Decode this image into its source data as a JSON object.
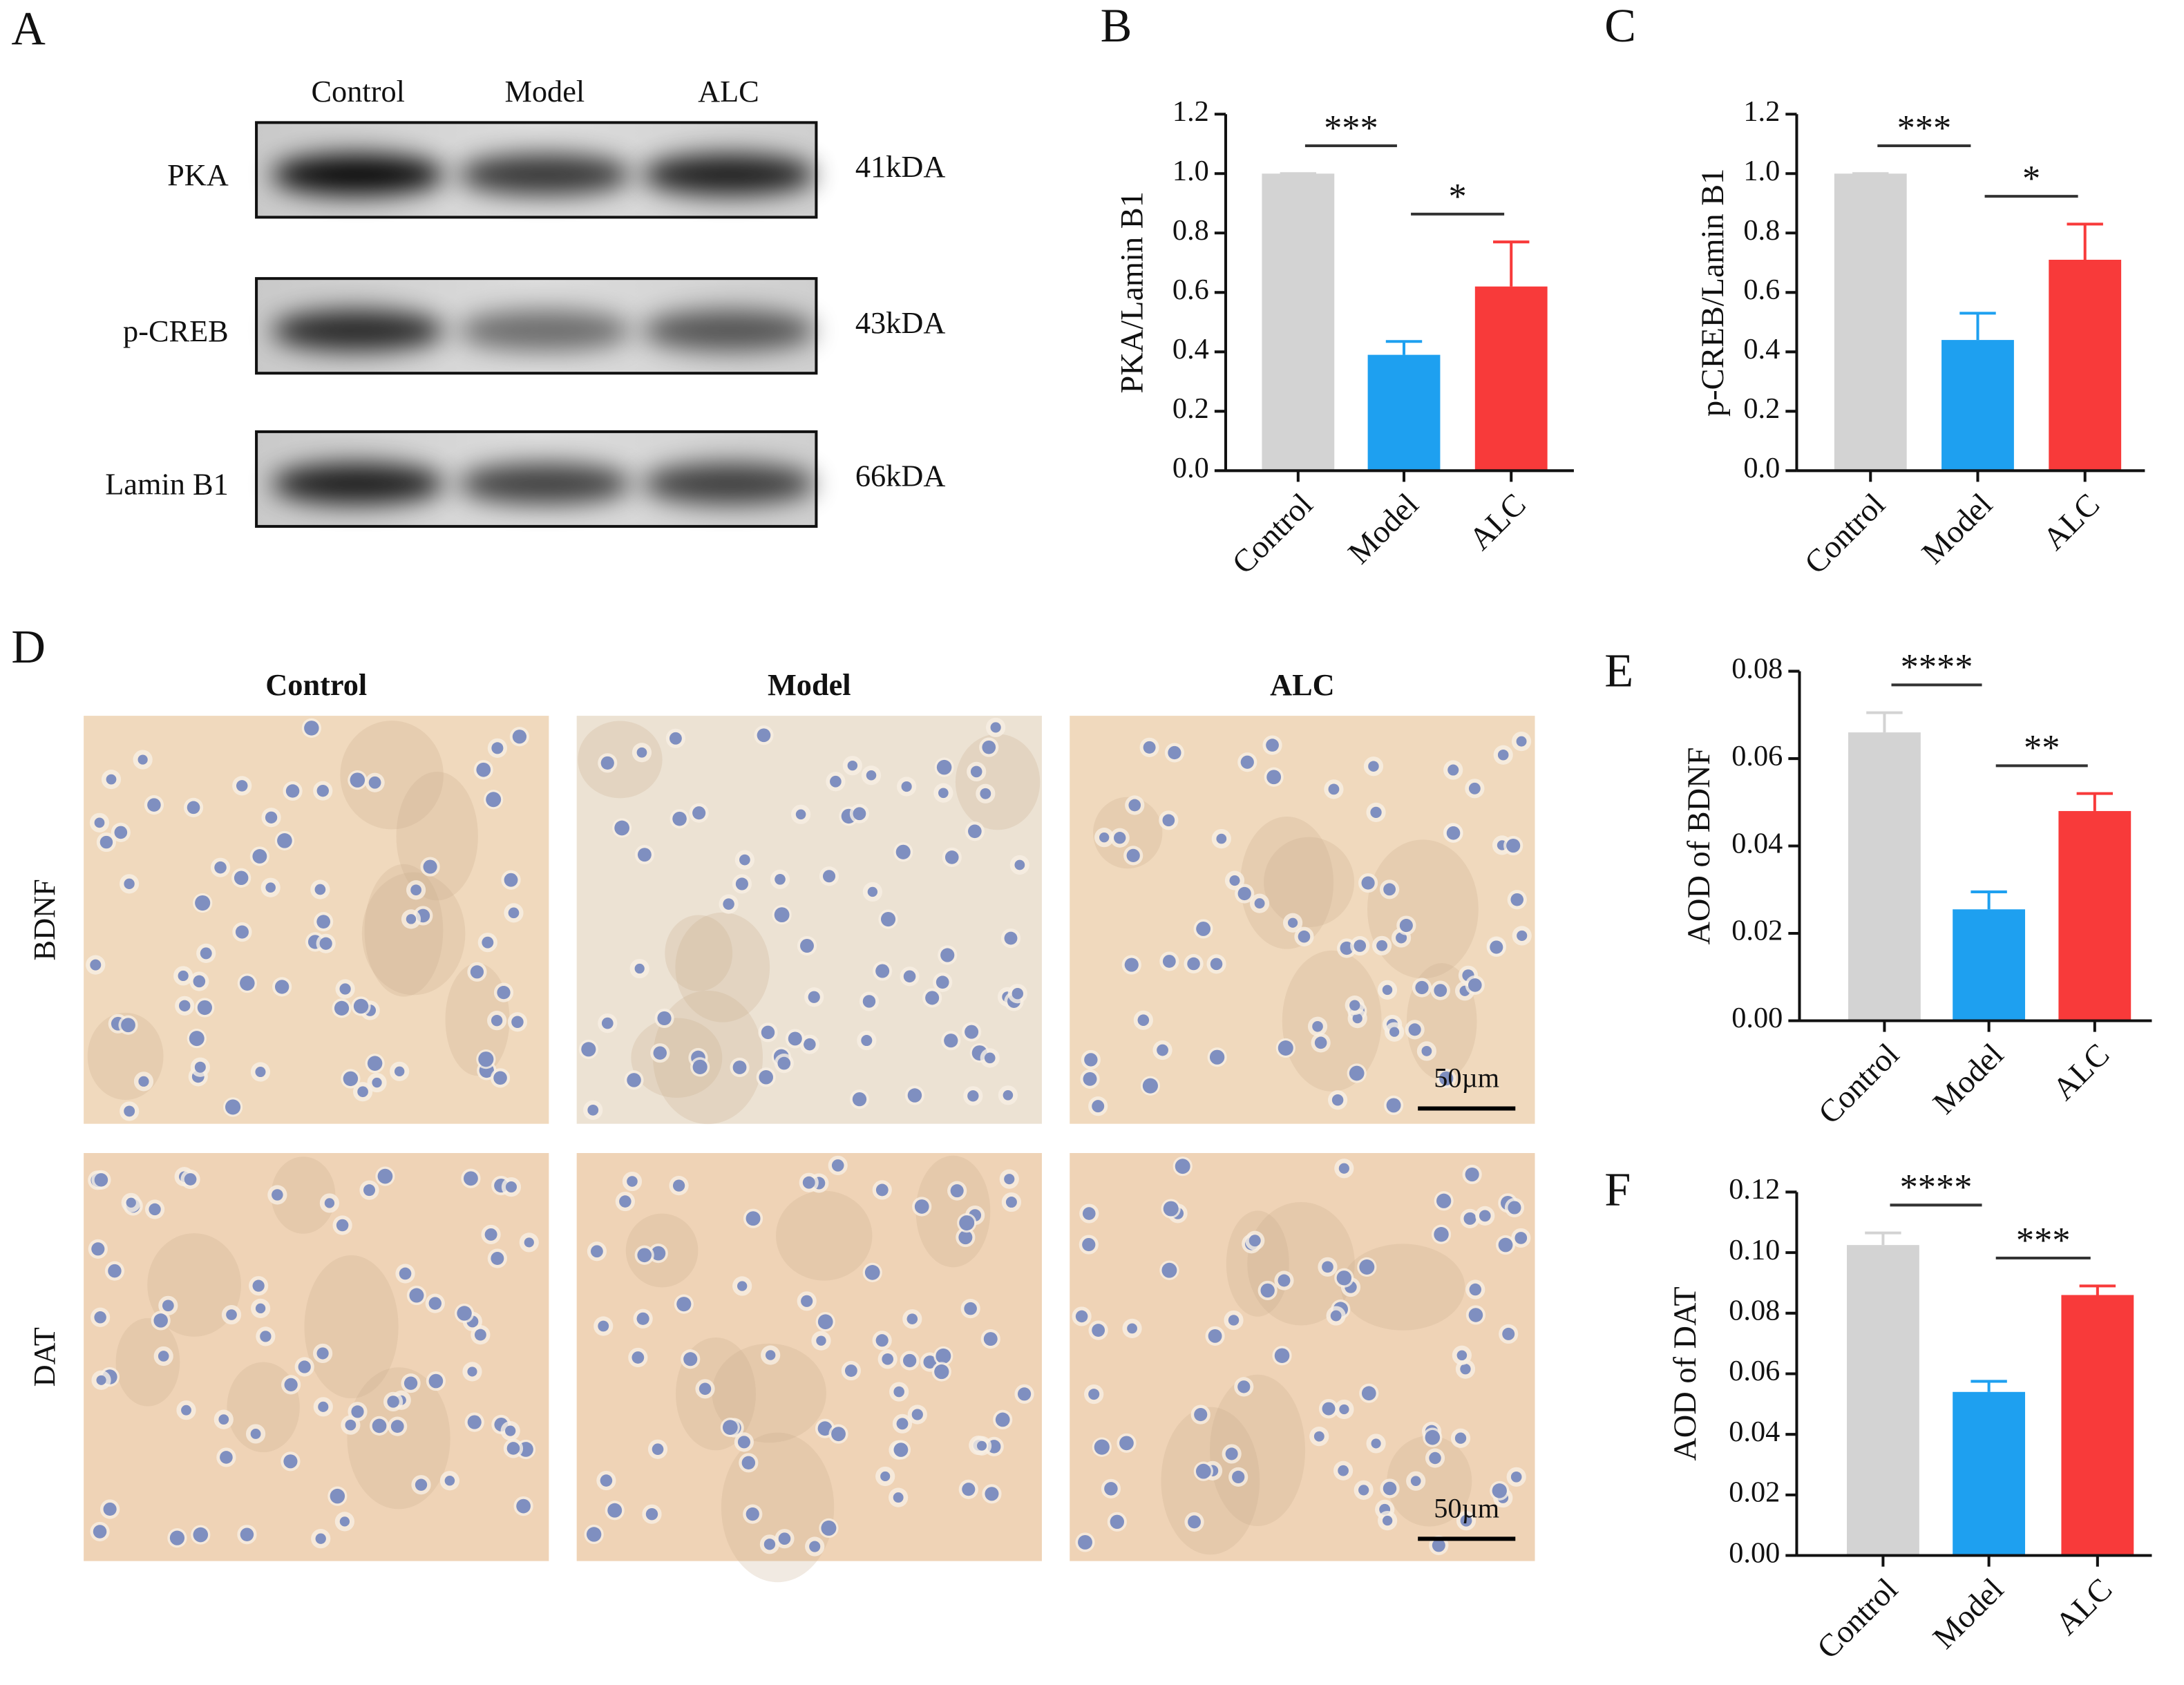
{
  "chart_data": [
    {
      "type": "bar",
      "label": "B",
      "ylabel": "PKA/Lamin B1",
      "categories": [
        "Control",
        "Model",
        "ALC"
      ],
      "values": [
        1.0,
        0.39,
        0.62
      ],
      "errors": [
        0,
        0.045,
        0.15
      ],
      "colors": [
        "#d3d3d3",
        "#1ea0f0",
        "#f83a3a"
      ],
      "ylim": [
        0,
        1.2
      ],
      "yticks": [
        {
          "value": 0,
          "label": "0.0"
        },
        0.2,
        0.4,
        0.6,
        0.8,
        {
          "value": 1,
          "label": "1.0"
        },
        1.2
      ],
      "annotations": [
        "***",
        "*"
      ]
    },
    {
      "type": "bar",
      "label": "C",
      "ylabel": "p-CREB/Lamin B1",
      "categories": [
        "Control",
        "Model",
        "ALC"
      ],
      "values": [
        1.0,
        0.44,
        0.71
      ],
      "errors": [
        0,
        0.09,
        0.12
      ],
      "colors": [
        "#d3d3d3",
        "#1ea0f0",
        "#f83a3a"
      ],
      "ylim": [
        0,
        1.2
      ],
      "yticks": [
        {
          "value": 0,
          "label": "0.0"
        },
        0.2,
        0.4,
        0.6,
        0.8,
        {
          "value": 1,
          "label": "1.0"
        },
        1.2
      ],
      "annotations": [
        "***",
        "*"
      ]
    },
    {
      "type": "bar",
      "label": "E",
      "ylabel": "AOD of BDNF",
      "categories": [
        "Control",
        "Model",
        "ALC"
      ],
      "values": [
        0.066,
        0.0255,
        0.048
      ],
      "errors": [
        0.0045,
        0.004,
        0.004
      ],
      "colors": [
        "#d3d3d3",
        "#1ea0f0",
        "#f83a3a"
      ],
      "ylim": [
        0,
        0.08
      ],
      "yticks": [
        {
          "value": 0,
          "label": "0.00"
        },
        0.02,
        0.04,
        0.06,
        0.08
      ],
      "annotations": [
        "****",
        "**"
      ]
    },
    {
      "type": "bar",
      "label": "F",
      "ylabel": "AOD of DAT",
      "categories": [
        "Control",
        "Model",
        "ALC"
      ],
      "values": [
        0.1025,
        0.054,
        0.086
      ],
      "errors": [
        0.004,
        0.0035,
        0.003
      ],
      "colors": [
        "#d3d3d3",
        "#1ea0f0",
        "#f83a3a"
      ],
      "ylim": [
        0,
        0.12
      ],
      "yticks": [
        {
          "value": 0,
          "label": "0.00"
        },
        0.02,
        0.04,
        0.06,
        0.08,
        {
          "value": 0.1,
          "label": "0.10"
        },
        0.12
      ],
      "annotations": [
        "****",
        "***"
      ]
    }
  ],
  "blot": {
    "label": "A",
    "lanes": [
      "Control",
      "Model",
      "ALC"
    ],
    "rows": [
      {
        "protein": "PKA",
        "size": "41kDA"
      },
      {
        "protein": "p-CREB",
        "size": "43kDA"
      },
      {
        "protein": "Lamin B1",
        "size": "66kDA"
      }
    ]
  },
  "histology": {
    "label": "D",
    "columns": [
      "Control",
      "Model",
      "ALC"
    ],
    "rows": [
      "BDNF",
      "DAT"
    ],
    "scale_bar": "50µm"
  }
}
